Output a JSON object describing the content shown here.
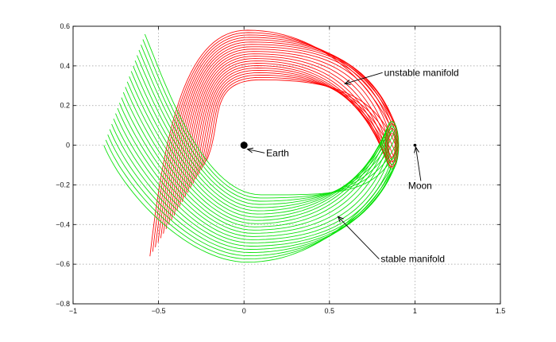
{
  "chart_data": {
    "type": "line",
    "title": "",
    "xlabel": "",
    "ylabel": "",
    "xlim": [
      -1,
      1.5
    ],
    "ylim": [
      -0.8,
      0.6
    ],
    "grid": true,
    "x_ticks": [
      "−1",
      "−0.5",
      "0",
      "0.5",
      "1",
      "1.5"
    ],
    "y_ticks": [
      "0.6",
      "0.4",
      "0.2",
      "0",
      "−0.2",
      "−0.4",
      "−0.6",
      "−0.8"
    ],
    "colors": {
      "unstable": "#ff0000",
      "stable": "#00e000"
    },
    "periodic_orbit": {
      "center": [
        0.865,
        0.0
      ],
      "half_width": 0.04,
      "half_height": 0.12
    },
    "bodies": [
      {
        "label": "Earth",
        "x": 0.0,
        "y": 0.0,
        "marker": "large-dot"
      },
      {
        "label": "Moon",
        "x": 1.0,
        "y": 0.0,
        "marker": "small-dot"
      }
    ],
    "series": [
      {
        "role": "unstable",
        "trajectories": 22,
        "start_x_range": [
          0.84,
          0.89
        ],
        "start_y_range": [
          -0.12,
          0.12
        ],
        "peak_y_range": [
          0.33,
          0.58
        ],
        "peak_x_range": [
          0.02,
          0.1
        ],
        "end_x_range": [
          -0.55,
          -0.22
        ],
        "end_y_range": [
          -0.56,
          -0.08
        ]
      },
      {
        "role": "stable",
        "trajectories": 22,
        "start_x_range": [
          0.84,
          0.89
        ],
        "start_y_range": [
          -0.12,
          0.12
        ],
        "trough_y_range": [
          -0.25,
          -0.59
        ],
        "trough_x_range": [
          0.02,
          0.1
        ],
        "end_x_range": [
          -0.82,
          -0.58
        ],
        "end_y_range": [
          0.0,
          0.56
        ]
      }
    ],
    "annotations": [
      {
        "text": "unstable manifold",
        "text_xy": [
          0.82,
          0.35
        ],
        "arrow_to": [
          0.59,
          0.31
        ]
      },
      {
        "text": "Earth",
        "text_xy": [
          0.13,
          -0.055
        ],
        "arrow_to": [
          0.02,
          -0.02
        ]
      },
      {
        "text": "Moon",
        "text_xy": [
          1.03,
          -0.22
        ],
        "arrow_to": [
          1.005,
          -0.01
        ]
      },
      {
        "text": "stable manifold",
        "text_xy": [
          0.8,
          -0.59
        ],
        "arrow_to": [
          0.55,
          -0.36
        ]
      }
    ]
  }
}
